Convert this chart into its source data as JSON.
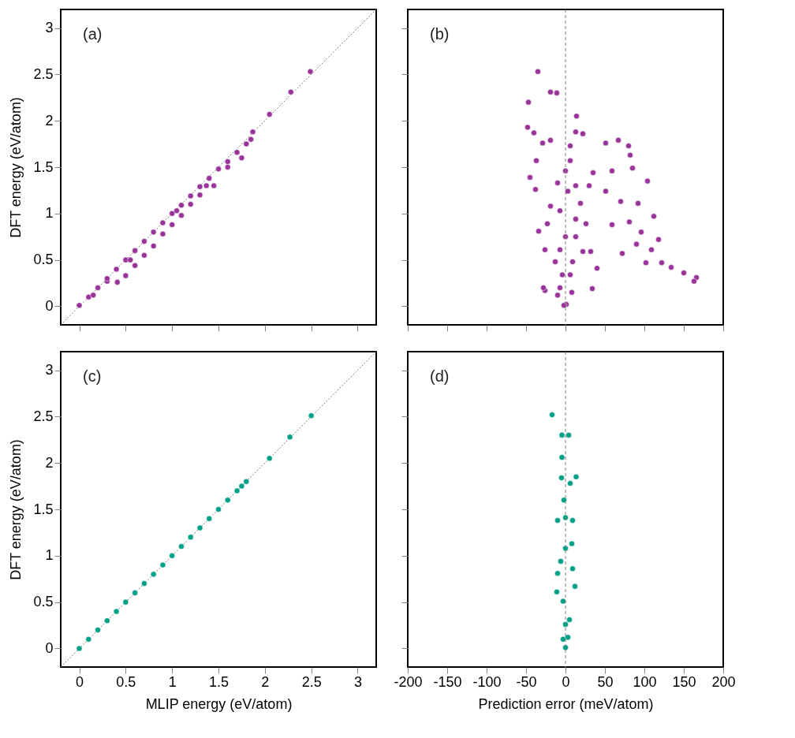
{
  "chart_data": [
    {
      "type": "scatter",
      "ylabel": "DFT energy (eV/atom)",
      "annotations": [
        "(a)"
      ],
      "xlim": [
        -0.2,
        3.2
      ],
      "ylim": [
        -0.2,
        3.2
      ],
      "xticks": [
        0,
        0.5,
        1,
        1.5,
        2,
        2.5,
        3
      ],
      "yticks": [
        0,
        0.5,
        1,
        1.5,
        2,
        2.5,
        3
      ],
      "tick_labels": "y",
      "grid": false,
      "series": [
        {
          "type": "line",
          "line_style": "dotted",
          "color": "#808080",
          "x": [
            -0.2,
            3.2
          ],
          "values": [
            -0.2,
            3.2
          ]
        },
        {
          "color": "#993399",
          "marker": "circle",
          "x": [
            0,
            0.1,
            0.15,
            0.2,
            0.3,
            0.3,
            0.4,
            0.5,
            0.55,
            0.6,
            0.7,
            0.8,
            0.9,
            1.0,
            1.05,
            1.1,
            1.2,
            1.3,
            1.4,
            1.45,
            1.5,
            1.6,
            1.6,
            1.7,
            1.75,
            1.8,
            1.85,
            1.87,
            2.05,
            2.28,
            2.49,
            0.41,
            0.5,
            0.6,
            0.7,
            0.8,
            0.9,
            1.0,
            1.1,
            1.2,
            1.3,
            1.37
          ],
          "values": [
            0.01,
            0.1,
            0.12,
            0.2,
            0.27,
            0.3,
            0.4,
            0.5,
            0.5,
            0.6,
            0.7,
            0.8,
            0.9,
            1.0,
            1.03,
            1.09,
            1.19,
            1.29,
            1.38,
            1.3,
            1.48,
            1.5,
            1.56,
            1.66,
            1.6,
            1.75,
            1.8,
            1.88,
            2.07,
            2.31,
            2.53,
            0.26,
            0.33,
            0.44,
            0.55,
            0.65,
            0.78,
            0.88,
            0.98,
            1.1,
            1.2,
            1.3
          ]
        }
      ]
    },
    {
      "type": "scatter",
      "annotations": [
        "(b)"
      ],
      "xlim": [
        -200,
        200
      ],
      "ylim": [
        -0.2,
        3.2
      ],
      "xticks": [
        -200,
        -150,
        -100,
        -50,
        0,
        50,
        100,
        150,
        200
      ],
      "yticks": [
        0,
        0.5,
        1,
        1.5,
        2,
        2.5,
        3
      ],
      "tick_labels": false,
      "grid": false,
      "ref_lines": [
        {
          "axis": "x",
          "value": 0,
          "color": "#808080",
          "line_style": "dashed"
        }
      ],
      "series": [
        {
          "color": "#993399",
          "marker": "circle",
          "x": [
            -35,
            -47,
            -19,
            -11,
            -48,
            -40,
            14,
            13,
            22,
            -29,
            -19,
            6,
            -37,
            -45,
            -38,
            0,
            6,
            -10,
            13,
            -7,
            13,
            -23,
            26,
            -26,
            32,
            -13,
            0,
            6,
            -7,
            1,
            -26,
            -28,
            -10,
            34,
            40,
            22,
            -34,
            -19,
            19,
            3,
            9,
            -4,
            8,
            -2,
            -7,
            13,
            51,
            67,
            80,
            82,
            59,
            85,
            104,
            51,
            70,
            92,
            81,
            96,
            112,
            90,
            109,
            118,
            122,
            102,
            134,
            150,
            166,
            163,
            72,
            59,
            30,
            35
          ],
          "values": [
            2.53,
            2.2,
            2.31,
            2.3,
            1.93,
            1.87,
            2.05,
            1.88,
            1.86,
            1.76,
            1.79,
            1.73,
            1.57,
            1.39,
            1.26,
            1.46,
            1.57,
            1.33,
            1.3,
            1.03,
            0.94,
            0.89,
            0.89,
            0.61,
            0.59,
            0.48,
            0.75,
            0.34,
            0.2,
            0.02,
            0.17,
            0.2,
            0.12,
            0.19,
            0.41,
            0.59,
            0.81,
            1.08,
            1.11,
            1.24,
            0.48,
            0.34,
            0.15,
            0.01,
            0.61,
            0.75,
            1.76,
            1.79,
            1.73,
            1.63,
            1.46,
            1.49,
            1.35,
            1.24,
            1.13,
            1.11,
            0.91,
            0.8,
            0.97,
            0.67,
            0.61,
            0.72,
            0.47,
            0.47,
            0.42,
            0.36,
            0.31,
            0.27,
            0.57,
            0.88,
            1.3,
            1.44
          ]
        }
      ]
    },
    {
      "type": "scatter",
      "xlabel": "MLIP energy (eV/atom)",
      "ylabel": "DFT energy (eV/atom)",
      "annotations": [
        "(c)"
      ],
      "xlim": [
        -0.2,
        3.2
      ],
      "ylim": [
        -0.2,
        3.2
      ],
      "xticks": [
        0,
        0.5,
        1,
        1.5,
        2,
        2.5,
        3
      ],
      "yticks": [
        0,
        0.5,
        1,
        1.5,
        2,
        2.5,
        3
      ],
      "grid": false,
      "series": [
        {
          "type": "line",
          "line_style": "dotted",
          "color": "#808080",
          "x": [
            -0.2,
            3.2
          ],
          "values": [
            -0.2,
            3.2
          ]
        },
        {
          "color": "#00a087",
          "marker": "circle",
          "x": [
            0,
            0.1,
            0.2,
            0.3,
            0.4,
            0.5,
            0.6,
            0.7,
            0.8,
            0.9,
            1.0,
            1.1,
            1.2,
            1.3,
            1.4,
            1.5,
            1.6,
            1.7,
            1.75,
            1.8,
            2.05,
            2.27,
            2.5
          ],
          "values": [
            0,
            0.1,
            0.2,
            0.3,
            0.4,
            0.5,
            0.6,
            0.7,
            0.8,
            0.9,
            1.0,
            1.1,
            1.2,
            1.3,
            1.4,
            1.5,
            1.6,
            1.7,
            1.75,
            1.8,
            2.05,
            2.28,
            2.51
          ]
        }
      ]
    },
    {
      "type": "scatter",
      "xlabel": "Prediction error (meV/atom)",
      "annotations": [
        "(d)"
      ],
      "xlim": [
        -200,
        200
      ],
      "ylim": [
        -0.2,
        3.2
      ],
      "xticks": [
        -200,
        -150,
        -100,
        -50,
        0,
        50,
        100,
        150,
        200
      ],
      "yticks": [
        0,
        0.5,
        1,
        1.5,
        2,
        2.5,
        3
      ],
      "tick_labels": "x",
      "grid": false,
      "ref_lines": [
        {
          "axis": "x",
          "value": 0,
          "color": "#808080",
          "line_style": "dashed"
        }
      ],
      "series": [
        {
          "color": "#00a087",
          "marker": "circle",
          "x": [
            -17,
            -4.5,
            4,
            -4.5,
            -5,
            13.5,
            6,
            -2,
            -10,
            9,
            0,
            0,
            -6,
            8,
            -11,
            12,
            -3,
            5,
            0,
            0,
            3,
            -3,
            -10,
            9
          ],
          "values": [
            2.52,
            2.3,
            2.3,
            2.06,
            1.84,
            1.85,
            1.78,
            1.6,
            1.38,
            1.38,
            1.41,
            1.08,
            0.94,
            1.13,
            0.61,
            0.67,
            0.51,
            0.31,
            0.26,
            0.01,
            0.12,
            0.1,
            0.81,
            0.86
          ]
        }
      ]
    }
  ]
}
